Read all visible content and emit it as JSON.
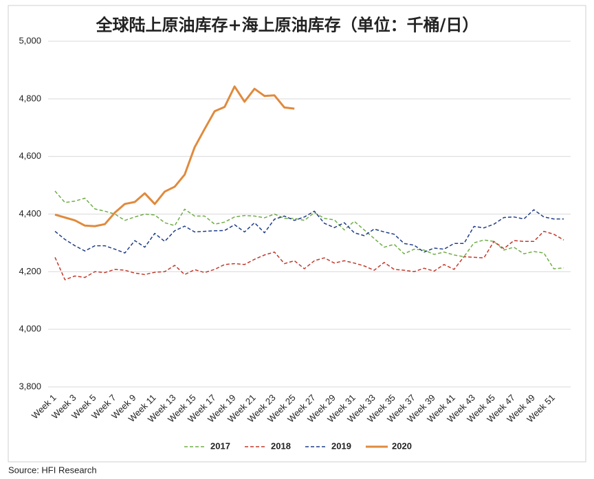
{
  "chart_data": {
    "type": "line",
    "title": "全球陆上原油库存+海上原油库存（单位：千桶/日）",
    "source": "Source: HFI Research",
    "categories": [
      "Week 1",
      null,
      "Week 3",
      null,
      "Week 5",
      null,
      "Week 7",
      null,
      "Week 9",
      null,
      "Week 11",
      null,
      "Week 13",
      null,
      "Week 15",
      null,
      "Week 17",
      null,
      "Week 19",
      null,
      "Week 21",
      null,
      "Week 23",
      null,
      "Week 25",
      null,
      "Week 27",
      null,
      "Week 29",
      null,
      "Week 31",
      null,
      "Week 33",
      null,
      "Week 35",
      null,
      "Week 37",
      null,
      "Week 39",
      null,
      "Week 41",
      null,
      "Week 43",
      null,
      "Week 45",
      null,
      "Week 47",
      null,
      "Week 49",
      null,
      "Week 51",
      null
    ],
    "ylim": [
      3800,
      5000
    ],
    "yticks": [
      {
        "value": 3800,
        "label": "3,800"
      },
      {
        "value": 4000,
        "label": "4,000"
      },
      {
        "value": 4200,
        "label": "4,200"
      },
      {
        "value": 4400,
        "label": "4,400"
      },
      {
        "value": 4600,
        "label": "4,600"
      },
      {
        "value": 4800,
        "label": "4,800"
      },
      {
        "value": 5000,
        "label": "5,000"
      }
    ],
    "grid": true,
    "legend": "bottom",
    "series": [
      {
        "name": "2017",
        "color": "#70ad47",
        "style": "dashed",
        "values": [
          4480,
          4440,
          4445,
          4455,
          4418,
          4410,
          4400,
          4378,
          4390,
          4400,
          4397,
          4370,
          4360,
          4417,
          4393,
          4393,
          4365,
          4372,
          4390,
          4395,
          4393,
          4387,
          4400,
          4385,
          4385,
          4378,
          4405,
          4385,
          4380,
          4345,
          4375,
          4345,
          4315,
          4285,
          4295,
          4262,
          4278,
          4275,
          4260,
          4268,
          4258,
          4252,
          4300,
          4310,
          4305,
          4275,
          4285,
          4262,
          4270,
          4265,
          4210,
          4213
        ]
      },
      {
        "name": "2018",
        "color": "#c0392b",
        "style": "dashed",
        "values": [
          4250,
          4172,
          4185,
          4180,
          4200,
          4197,
          4208,
          4205,
          4195,
          4190,
          4198,
          4200,
          4222,
          4190,
          4207,
          4197,
          4208,
          4225,
          4228,
          4225,
          4243,
          4258,
          4268,
          4228,
          4238,
          4210,
          4238,
          4248,
          4230,
          4238,
          4230,
          4220,
          4205,
          4232,
          4208,
          4205,
          4200,
          4212,
          4202,
          4225,
          4208,
          4252,
          4250,
          4248,
          4305,
          4280,
          4308,
          4305,
          4305,
          4340,
          4330,
          4310
        ]
      },
      {
        "name": "2019",
        "color": "#1f3c88",
        "style": "dashed",
        "values": [
          4340,
          4312,
          4290,
          4272,
          4290,
          4290,
          4278,
          4265,
          4308,
          4285,
          4333,
          4305,
          4342,
          4358,
          4338,
          4340,
          4342,
          4343,
          4363,
          4338,
          4370,
          4335,
          4382,
          4393,
          4378,
          4390,
          4410,
          4368,
          4353,
          4370,
          4335,
          4325,
          4348,
          4338,
          4330,
          4298,
          4292,
          4268,
          4282,
          4278,
          4298,
          4298,
          4357,
          4352,
          4365,
          4388,
          4390,
          4383,
          4415,
          4390,
          4383,
          4383
        ]
      },
      {
        "name": "2020",
        "color": "#e08a3c",
        "style": "solid",
        "values": [
          4398,
          4388,
          4378,
          4360,
          4358,
          4365,
          4405,
          4435,
          4442,
          4472,
          4435,
          4478,
          4495,
          4537,
          4632,
          4695,
          4757,
          4772,
          4843,
          4790,
          4835,
          4810,
          4812,
          4770,
          4766,
          null,
          null,
          null,
          null,
          null,
          null,
          null,
          null,
          null,
          null,
          null,
          null,
          null,
          null,
          null,
          null,
          null,
          null,
          null,
          null,
          null,
          null,
          null,
          null,
          null,
          null,
          null
        ]
      }
    ]
  }
}
